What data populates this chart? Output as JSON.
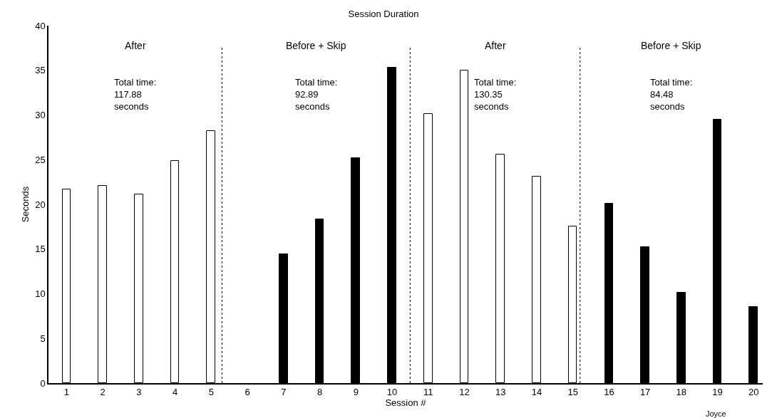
{
  "chart_data": {
    "type": "bar",
    "title": "Session Duration",
    "xlabel": "Session #",
    "ylabel": "Seconds",
    "x": [
      1,
      2,
      3,
      4,
      5,
      6,
      7,
      8,
      9,
      10,
      11,
      12,
      13,
      14,
      15,
      16,
      17,
      18,
      19,
      20
    ],
    "values": [
      21.7,
      22.1,
      21.1,
      24.9,
      28.2,
      null,
      14.4,
      18.3,
      25.2,
      35.3,
      30.1,
      35.0,
      25.6,
      23.1,
      17.5,
      20.1,
      15.2,
      10.1,
      29.5,
      8.5
    ],
    "colors": [
      "#ffffff",
      "#ffffff",
      "#ffffff",
      "#ffffff",
      "#ffffff",
      "#000000",
      "#000000",
      "#000000",
      "#000000",
      "#000000",
      "#ffffff",
      "#ffffff",
      "#ffffff",
      "#ffffff",
      "#ffffff",
      "#000000",
      "#000000",
      "#000000",
      "#000000",
      "#000000"
    ],
    "xlim": [
      0.5,
      20.25
    ],
    "xticks": [
      1,
      2,
      3,
      4,
      5,
      6,
      7,
      8,
      9,
      10,
      11,
      12,
      13,
      14,
      15,
      16,
      17,
      18,
      19,
      20
    ],
    "ylim": [
      0,
      40
    ],
    "yticks": [
      0,
      5,
      10,
      15,
      20,
      25,
      30,
      35,
      40
    ],
    "grid": false,
    "ref_lines": [
      {
        "axis": "x",
        "value": 5.3,
        "line_style": "dotted",
        "color": "#000000"
      },
      {
        "axis": "x",
        "value": 10.5,
        "line_style": "dotted",
        "color": "#000000"
      },
      {
        "axis": "x",
        "value": 15.2,
        "line_style": "dotted",
        "color": "#000000"
      }
    ],
    "annotations": [
      "After",
      "Total time:\n117.88\nseconds",
      "Before + Skip",
      "Total time:\n92.89\nseconds",
      "After",
      "Total time:\n130.35\nseconds",
      "Before + Skip",
      "Total time:\n84.48\nseconds",
      "Joyce"
    ]
  }
}
